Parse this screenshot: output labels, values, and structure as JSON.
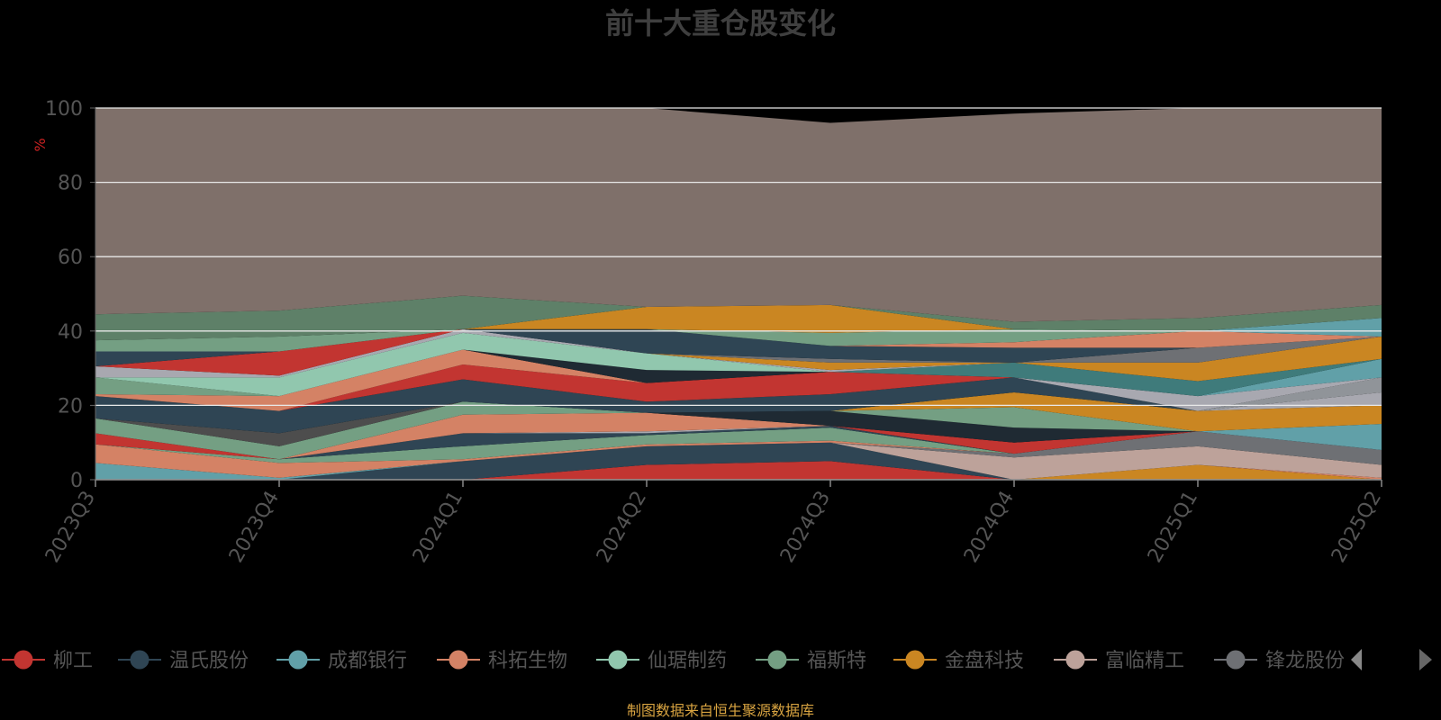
{
  "chart_data": {
    "type": "area",
    "title": "前十大重仓股变化",
    "ylabel": "%",
    "ylim": [
      0,
      100
    ],
    "yticks": [
      "0",
      "20",
      "40",
      "60",
      "80",
      "100"
    ],
    "categories": [
      "2023Q3",
      "2023Q4",
      "2024Q1",
      "2024Q2",
      "2024Q3",
      "2024Q4",
      "2025Q1",
      "2025Q2"
    ],
    "grid": true,
    "legend_position": "bottom",
    "footnote": "制图数据来自恒生聚源数据库",
    "footnote_color": "#d9a441",
    "legend": [
      {
        "name": "柳工",
        "color": "#c23531"
      },
      {
        "name": "温氏股份",
        "color": "#2f4554"
      },
      {
        "name": "成都银行",
        "color": "#61a0a8"
      },
      {
        "name": "科拓生物",
        "color": "#d48265"
      },
      {
        "name": "仙琚制药",
        "color": "#91c7ae"
      },
      {
        "name": "福斯特",
        "color": "#749f83"
      },
      {
        "name": "金盘科技",
        "color": "#ca8622"
      },
      {
        "name": "富临精工",
        "color": "#bda29a"
      },
      {
        "name": "锋龙股份",
        "color": "#6e7074"
      }
    ],
    "bands": [
      {
        "color": "#c23531",
        "upper": [
          0,
          0,
          0,
          4,
          5,
          0,
          0,
          0
        ]
      },
      {
        "color": "#2f4554",
        "upper": [
          0,
          0,
          5,
          9,
          10,
          0,
          0,
          0
        ]
      },
      {
        "color": "#ca8622",
        "upper": [
          0,
          0,
          5,
          9,
          10,
          0,
          4,
          0
        ]
      },
      {
        "color": "#d48265",
        "upper": [
          0,
          0,
          5,
          9,
          10,
          0,
          4,
          0.5
        ]
      },
      {
        "color": "#bda29a",
        "upper": [
          0,
          0,
          5,
          9,
          10,
          6,
          9,
          4
        ]
      },
      {
        "color": "#6e7074",
        "upper": [
          0,
          0,
          5,
          9,
          10,
          7,
          13,
          8
        ]
      },
      {
        "color": "#61a0a8",
        "upper": [
          4.5,
          0.5,
          5,
          9,
          10,
          7,
          13,
          15
        ]
      },
      {
        "color": "#d48265",
        "upper": [
          9.5,
          4.5,
          5.5,
          9.5,
          10.5,
          7,
          13,
          15
        ]
      },
      {
        "color": "#749f83",
        "upper": [
          9.5,
          5.5,
          9,
          12,
          14,
          7,
          13,
          15
        ]
      },
      {
        "color": "#2f4554",
        "upper": [
          9.5,
          5.5,
          12.5,
          12.5,
          14.5,
          7,
          13,
          15
        ]
      },
      {
        "color": "#a8a8b0",
        "upper": [
          9.5,
          5.5,
          12.5,
          13,
          14.5,
          7,
          13,
          15
        ]
      },
      {
        "color": "#c23531",
        "upper": [
          12.5,
          5.5,
          12.5,
          13,
          14.5,
          10,
          13,
          15
        ]
      },
      {
        "color": "#d48265",
        "upper": [
          12.5,
          5.5,
          17.5,
          18,
          14.5,
          10,
          13,
          15
        ]
      },
      {
        "color": "#1f2a33",
        "upper": [
          12.5,
          5.5,
          17.5,
          18,
          18.5,
          14,
          13,
          15
        ]
      },
      {
        "color": "#749f83",
        "upper": [
          16.5,
          9,
          21,
          18,
          18.5,
          19.5,
          13,
          15
        ]
      },
      {
        "color": "#ca8622",
        "upper": [
          16.5,
          9,
          21,
          18,
          18.5,
          23.5,
          18.5,
          20
        ]
      },
      {
        "color": "#4d4d4d",
        "upper": [
          16.5,
          12.5,
          21,
          18,
          18.5,
          23.5,
          18.5,
          20
        ]
      },
      {
        "color": "#2f4554",
        "upper": [
          22.5,
          18.5,
          27,
          21,
          23,
          27.5,
          18.5,
          20
        ]
      },
      {
        "color": "#c23531",
        "upper": [
          22.5,
          18.5,
          31,
          26,
          29,
          27.5,
          18.5,
          20
        ]
      },
      {
        "color": "#a8a8b0",
        "upper": [
          22.5,
          18.5,
          31,
          26,
          29,
          27.5,
          18.5,
          23.5
        ]
      },
      {
        "color": "#d48265",
        "upper": [
          23,
          22.5,
          35,
          26,
          29,
          27.5,
          18.5,
          23.5
        ]
      },
      {
        "color": "#909499",
        "upper": [
          23,
          22.5,
          35,
          26,
          29,
          27.5,
          18.5,
          27.5
        ]
      },
      {
        "color": "#1f2a33",
        "upper": [
          23,
          22.5,
          35,
          29.5,
          29,
          27.5,
          18.5,
          27.5
        ]
      },
      {
        "color": "#a8a8b0",
        "upper": [
          23,
          22.5,
          35,
          29.5,
          29,
          27.5,
          22.5,
          27.5
        ]
      },
      {
        "color": "#61a0a8",
        "upper": [
          23,
          22.5,
          35,
          29.5,
          29,
          27.5,
          22.5,
          32.5
        ]
      },
      {
        "color": "#3f7b7b",
        "upper": [
          23,
          22.5,
          35,
          29.5,
          29,
          31.5,
          26.5,
          32.5
        ]
      },
      {
        "color": "#749f83",
        "upper": [
          27.5,
          22.5,
          35,
          29.5,
          29,
          31.5,
          26.5,
          32.5
        ]
      },
      {
        "color": "#91c7ae",
        "upper": [
          27.5,
          27.5,
          39.5,
          34,
          29,
          31.5,
          26.5,
          32.5
        ]
      },
      {
        "color": "#a8a8b0",
        "upper": [
          30.5,
          28,
          40.5,
          34,
          29.5,
          31.5,
          26.5,
          32.5
        ]
      },
      {
        "color": "#ca8622",
        "upper": [
          30.5,
          28,
          40.5,
          34,
          31.5,
          31.5,
          31.5,
          38.5
        ]
      },
      {
        "color": "#c23531",
        "upper": [
          30.5,
          34.5,
          40.5,
          34,
          31.5,
          31.5,
          31.5,
          38.5
        ]
      },
      {
        "color": "#6e7074",
        "upper": [
          30.5,
          34.5,
          40.5,
          34,
          32.5,
          31.5,
          35.5,
          38.5
        ]
      },
      {
        "color": "#2f4554",
        "upper": [
          34.5,
          34.5,
          40.5,
          40.5,
          36,
          35.5,
          35.5,
          38.5
        ]
      },
      {
        "color": "#d48265",
        "upper": [
          34.5,
          34.5,
          40.5,
          40.5,
          36,
          37,
          40,
          38.5
        ]
      },
      {
        "color": "#61a0a8",
        "upper": [
          34.5,
          34.5,
          40.5,
          40.5,
          36,
          37,
          40,
          43.5
        ]
      },
      {
        "color": "#749f83",
        "upper": [
          37.5,
          38.5,
          40.5,
          40.5,
          39.5,
          40.5,
          40,
          43.5
        ]
      },
      {
        "color": "#ca8622",
        "upper": [
          37.5,
          38.5,
          40.5,
          46.5,
          47,
          40.5,
          40,
          43.5
        ]
      },
      {
        "color": "#5e8068",
        "upper": [
          44.5,
          45.5,
          49.5,
          46.5,
          47,
          42.5,
          43.5,
          47
        ]
      },
      {
        "color": "#7f706a",
        "upper": [
          100,
          100,
          100,
          100,
          96,
          98.5,
          100,
          100
        ]
      }
    ]
  }
}
